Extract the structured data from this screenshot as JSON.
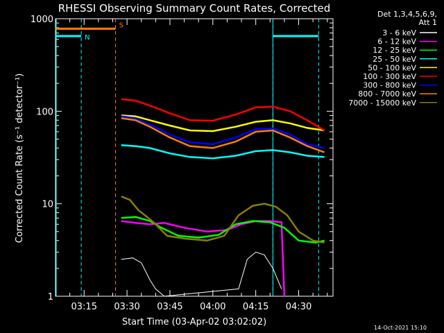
{
  "chart_data": {
    "type": "line",
    "title": "RHESSI Observing Summary Count Rates, Corrected",
    "xlabel": "Start Time (03-Apr-02 03:02:02)",
    "ylabel": "Corrected Count Rate (s⁻¹ detector⁻¹)",
    "y_scale": "log",
    "ylim": [
      1,
      1000
    ],
    "xlim": [
      "03:05",
      "04:42"
    ],
    "x_ticks": [
      "03:15",
      "03:30",
      "03:45",
      "04:00",
      "04:15",
      "04:30"
    ],
    "y_ticks": [
      "1",
      "10",
      "100",
      "1000"
    ],
    "footer_date": "14-Oct-2021 15:10",
    "legend_header": [
      "Det 1,3,4,5,6,9,",
      "Att 1"
    ],
    "series": [
      {
        "name": "3 - 6 keV",
        "color": "#ffffff",
        "x": [
          "03:28",
          "03:32",
          "03:35",
          "03:38",
          "03:40",
          "03:43",
          "04:09",
          "04:12",
          "04:15",
          "04:18",
          "04:21",
          "04:24"
        ],
        "values": [
          2.5,
          2.6,
          2.3,
          1.5,
          1.2,
          1.0,
          1.2,
          2.5,
          3.0,
          2.8,
          2.0,
          1.2
        ]
      },
      {
        "name": "6 - 12 keV",
        "color": "#ff00ff",
        "x": [
          "03:28",
          "03:33",
          "03:38",
          "03:43",
          "03:50",
          "03:58",
          "04:05",
          "04:10",
          "04:15",
          "04:20",
          "04:24",
          "04:25"
        ],
        "values": [
          6.5,
          6.2,
          6.0,
          6.2,
          5.5,
          5.0,
          5.2,
          6.0,
          6.5,
          6.5,
          6.3,
          1.0
        ]
      },
      {
        "name": "12 - 25 keV",
        "color": "#00ff00",
        "x": [
          "03:28",
          "03:33",
          "03:38",
          "03:42",
          "03:48",
          "03:55",
          "04:02",
          "04:08",
          "04:14",
          "04:20",
          "04:25",
          "04:30",
          "04:36",
          "04:39"
        ],
        "values": [
          7.0,
          7.2,
          6.5,
          5.5,
          4.5,
          4.3,
          4.6,
          6.0,
          6.5,
          6.3,
          5.5,
          4.0,
          3.8,
          4.0
        ]
      },
      {
        "name": "25 - 50 keV",
        "color": "#00ffff",
        "x": [
          "03:28",
          "03:33",
          "03:38",
          "03:45",
          "03:52",
          "04:00",
          "04:08",
          "04:15",
          "04:21",
          "04:27",
          "04:33",
          "04:39"
        ],
        "values": [
          43,
          42,
          40,
          35,
          32,
          31,
          33,
          37,
          38,
          36,
          33,
          32
        ]
      },
      {
        "name": "50 - 100 keV",
        "color": "#ffff00",
        "x": [
          "03:28",
          "03:33",
          "03:38",
          "03:45",
          "03:52",
          "04:00",
          "04:08",
          "04:15",
          "04:21",
          "04:27",
          "04:33",
          "04:39"
        ],
        "values": [
          90,
          88,
          80,
          70,
          62,
          61,
          68,
          77,
          80,
          74,
          66,
          62
        ]
      },
      {
        "name": "100 - 300 keV",
        "color": "#ff0000",
        "x": [
          "03:28",
          "03:33",
          "03:38",
          "03:45",
          "03:52",
          "04:00",
          "04:08",
          "04:15",
          "04:21",
          "04:27",
          "04:33",
          "04:39"
        ],
        "values": [
          135,
          130,
          115,
          95,
          80,
          79,
          92,
          110,
          112,
          100,
          80,
          62
        ]
      },
      {
        "name": "300 - 800 keV",
        "color": "#0000ff",
        "x": [
          "03:28",
          "03:33",
          "03:38",
          "03:45",
          "03:52",
          "04:00",
          "04:08",
          "04:15",
          "04:21",
          "04:27",
          "04:33",
          "04:39"
        ],
        "values": [
          88,
          84,
          72,
          56,
          46,
          44,
          52,
          64,
          65,
          56,
          44,
          40
        ]
      },
      {
        "name": "800 - 7000 keV",
        "color": "#ff8000",
        "x": [
          "03:28",
          "03:33",
          "03:38",
          "03:45",
          "03:52",
          "04:00",
          "04:08",
          "04:15",
          "04:21",
          "04:27",
          "04:33",
          "04:39"
        ],
        "values": [
          84,
          80,
          68,
          52,
          42,
          40,
          47,
          60,
          62,
          52,
          42,
          36
        ]
      },
      {
        "name": "7000 - 15000 keV",
        "color": "#8b7f00",
        "x": [
          "03:28",
          "03:31",
          "03:34",
          "03:37",
          "03:40",
          "03:44",
          "03:50",
          "03:58",
          "04:04",
          "04:09",
          "04:14",
          "04:18",
          "04:22",
          "04:26",
          "04:30",
          "04:35",
          "04:39"
        ],
        "values": [
          12,
          11,
          8.5,
          7.2,
          6.0,
          4.5,
          4.2,
          4.0,
          4.5,
          7.5,
          9.5,
          10.0,
          9.3,
          7.5,
          5.0,
          4.0,
          3.8
        ]
      }
    ],
    "flags": [
      {
        "label": "N",
        "color": "#00ffff",
        "segments": [
          [
            "03:05",
            "03:14"
          ],
          [
            "04:21",
            "04:37"
          ]
        ],
        "level": 650,
        "bounds": [
          "03:14",
          "04:21",
          "04:37"
        ]
      },
      {
        "label": "S",
        "color": "#ff8000",
        "segments": [
          [
            "03:05",
            "03:26"
          ]
        ],
        "level": 780,
        "bounds": [
          "03:26"
        ]
      }
    ],
    "extra_lines": [
      {
        "color": "#00ffff",
        "x": "03:05"
      }
    ]
  }
}
